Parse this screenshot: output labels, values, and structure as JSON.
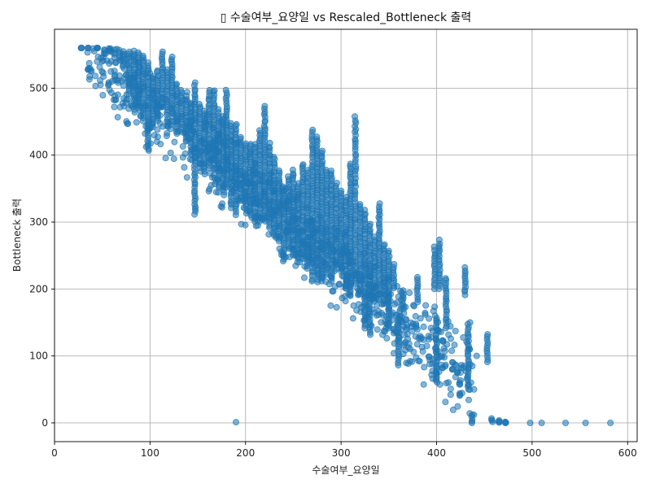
{
  "chart_data": {
    "type": "scatter",
    "title": "▯ 수술여부_요양일 vs Rescaled_Bottleneck 출력",
    "xlabel": "수술여부_요양일",
    "ylabel": "Bottleneck 출력",
    "xlim": [
      0,
      610
    ],
    "ylim": [
      -28,
      588
    ],
    "xticks": [
      0,
      100,
      200,
      300,
      400,
      500,
      600
    ],
    "yticks": [
      0,
      100,
      200,
      300,
      400,
      500
    ],
    "grid": true,
    "legend": "none",
    "marker_color": "#1f77b4",
    "marker_alpha": 0.55,
    "trend": {
      "x_start": 30,
      "y_start": 560,
      "x_end": 440,
      "y_end": 60
    },
    "columns": [
      [
        28,
        560,
        560
      ],
      [
        35,
        560,
        560
      ],
      [
        45,
        560,
        560
      ],
      [
        52,
        552,
        560
      ],
      [
        58,
        555,
        560
      ],
      [
        63,
        545,
        560
      ],
      [
        68,
        540,
        560
      ],
      [
        72,
        530,
        558
      ],
      [
        78,
        490,
        558
      ],
      [
        83,
        480,
        558
      ],
      [
        88,
        470,
        556
      ],
      [
        93,
        450,
        552
      ],
      [
        98,
        405,
        540
      ],
      [
        103,
        440,
        520
      ],
      [
        108,
        450,
        530
      ],
      [
        113,
        470,
        558
      ],
      [
        118,
        450,
        530
      ],
      [
        123,
        460,
        550
      ],
      [
        128,
        430,
        510
      ],
      [
        133,
        440,
        500
      ],
      [
        138,
        420,
        490
      ],
      [
        143,
        400,
        480
      ],
      [
        147,
        310,
        510
      ],
      [
        152,
        380,
        480
      ],
      [
        157,
        370,
        470
      ],
      [
        162,
        380,
        500
      ],
      [
        167,
        380,
        500
      ],
      [
        172,
        350,
        470
      ],
      [
        177,
        340,
        460
      ],
      [
        180,
        360,
        500
      ],
      [
        185,
        320,
        450
      ],
      [
        190,
        310,
        450
      ],
      [
        195,
        330,
        430
      ],
      [
        200,
        320,
        420
      ],
      [
        205,
        310,
        420
      ],
      [
        210,
        300,
        420
      ],
      [
        215,
        300,
        440
      ],
      [
        220,
        300,
        475
      ],
      [
        225,
        290,
        420
      ],
      [
        230,
        280,
        400
      ],
      [
        235,
        270,
        380
      ],
      [
        240,
        240,
        350
      ],
      [
        245,
        260,
        370
      ],
      [
        250,
        250,
        380
      ],
      [
        255,
        240,
        360
      ],
      [
        260,
        250,
        390
      ],
      [
        265,
        230,
        380
      ],
      [
        270,
        210,
        440
      ],
      [
        275,
        210,
        430
      ],
      [
        280,
        210,
        410
      ],
      [
        285,
        220,
        380
      ],
      [
        290,
        210,
        380
      ],
      [
        295,
        230,
        360
      ],
      [
        300,
        230,
        350
      ],
      [
        305,
        200,
        340
      ],
      [
        310,
        190,
        390
      ],
      [
        315,
        210,
        460
      ],
      [
        320,
        190,
        330
      ],
      [
        325,
        140,
        320
      ],
      [
        330,
        130,
        300
      ],
      [
        335,
        180,
        280
      ],
      [
        340,
        190,
        330
      ],
      [
        345,
        180,
        270
      ],
      [
        350,
        140,
        260
      ],
      [
        355,
        200,
        240
      ],
      [
        360,
        85,
        160
      ],
      [
        365,
        170,
        200
      ],
      [
        380,
        180,
        220
      ],
      [
        398,
        200,
        265
      ],
      [
        400,
        60,
        160
      ],
      [
        403,
        200,
        275
      ],
      [
        410,
        140,
        220
      ],
      [
        430,
        190,
        235
      ],
      [
        433,
        50,
        150
      ],
      [
        437,
        0,
        15
      ],
      [
        453,
        90,
        135
      ],
      [
        458,
        0,
        8
      ],
      [
        465,
        0,
        5
      ],
      [
        472,
        0,
        2
      ]
    ],
    "points": [
      {
        "x": 190,
        "y": 1
      },
      {
        "x": 437,
        "y": 0
      },
      {
        "x": 439,
        "y": 12
      },
      {
        "x": 458,
        "y": 4
      },
      {
        "x": 465,
        "y": 2
      },
      {
        "x": 472,
        "y": 0
      },
      {
        "x": 498,
        "y": 0
      },
      {
        "x": 510,
        "y": 0
      },
      {
        "x": 535,
        "y": 0
      },
      {
        "x": 556,
        "y": 0
      },
      {
        "x": 582,
        "y": 0
      },
      {
        "x": 436,
        "y": 60
      },
      {
        "x": 435,
        "y": 150
      },
      {
        "x": 442,
        "y": 100
      }
    ]
  }
}
